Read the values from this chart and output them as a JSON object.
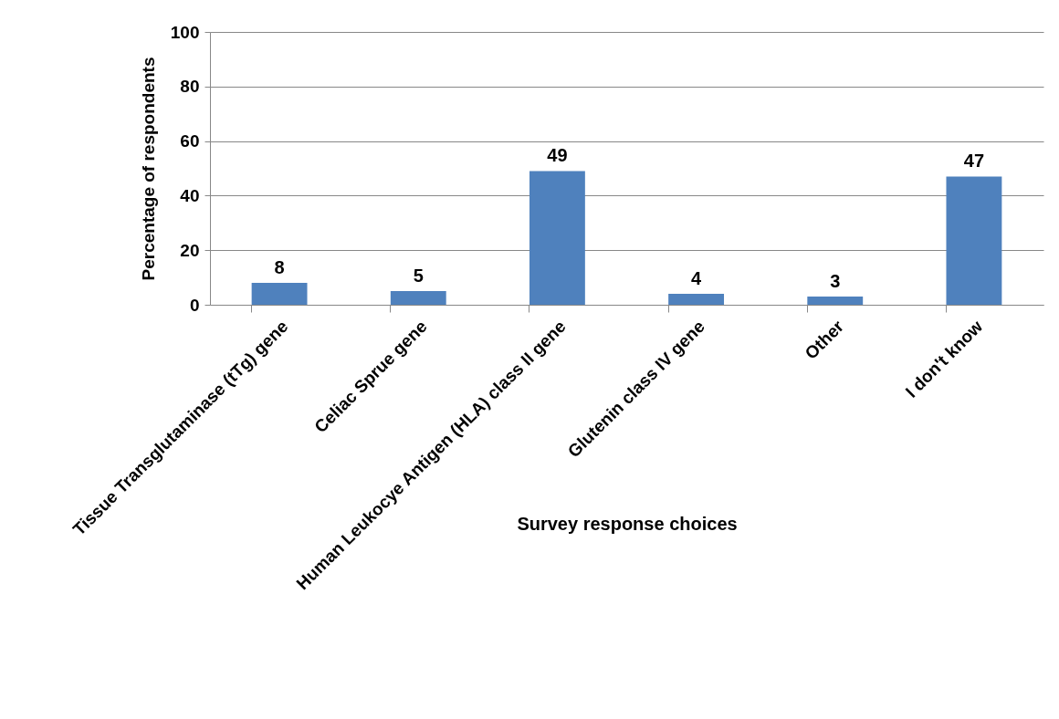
{
  "chart_data": {
    "type": "bar",
    "xlabel": "Survey response choices",
    "ylabel": "Percentage of respondents",
    "categories": [
      "Tissue Transglutaminase (tTg) gene",
      "Celiac Sprue gene",
      "Human Leukocye Antigen (HLA) class II gene",
      "Glutenin class IV gene",
      "Other",
      "I don't know"
    ],
    "values": [
      8,
      5,
      49,
      4,
      3,
      47
    ],
    "color": "#4f81bd",
    "ylim": [
      0,
      100
    ],
    "yticks": [
      0,
      20,
      40,
      60,
      80,
      100
    ],
    "grid": "y",
    "data_labels": true
  }
}
